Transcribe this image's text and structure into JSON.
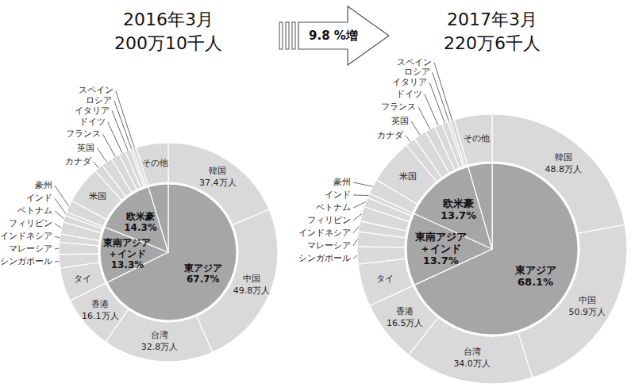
{
  "change_label": "9.8 %増",
  "chart_data": [
    {
      "type": "pie",
      "title": "2016年3月",
      "subtitle": "200万10千人",
      "data_labels": true,
      "series": [
        {
          "color": "#a6a6a6",
          "categories": [
            "東アジア",
            "東南アジア＋インド",
            "欧米豪",
            null
          ],
          "values": [
            67.7,
            13.3,
            14.3,
            4.7
          ],
          "value_labels": [
            "67.7%",
            "13.3%",
            "14.3%",
            null
          ]
        },
        {
          "color": "#d9d9d9",
          "categories": [
            "韓国",
            "中国",
            "台湾",
            "香港",
            "タイ",
            "シンガポール",
            "マレーシア",
            "インドネシア",
            "フィリピン",
            "ベトナム",
            "インド",
            "豪州",
            "米国",
            "カナダ",
            "英国",
            "フランス",
            "ドイツ",
            "イタリア",
            "ロシア",
            "スペイン",
            "その他"
          ],
          "values": [
            37.4,
            49.8,
            32.8,
            16.1,
            10.0,
            4.0,
            3.6,
            2.4,
            3.6,
            2.0,
            1.1,
            3.6,
            11.2,
            2.6,
            3.3,
            2.6,
            2.0,
            1.6,
            0.7,
            1.1,
            9.5
          ],
          "value_labels": [
            "37.4万人",
            "49.8万人",
            "32.8万人",
            "16.1万人",
            null,
            null,
            null,
            null,
            null,
            null,
            null,
            null,
            null,
            null,
            null,
            null,
            null,
            null,
            null,
            null,
            null
          ]
        }
      ]
    },
    {
      "type": "pie",
      "title": "2017年3月",
      "subtitle": "220万6千人",
      "data_labels": true,
      "series": [
        {
          "color": "#a6a6a6",
          "categories": [
            "東アジア",
            "東南アジア＋インド",
            "欧米豪",
            null
          ],
          "values": [
            68.1,
            13.7,
            13.7,
            4.5
          ],
          "value_labels": [
            "68.1%",
            "13.7%",
            "13.7%",
            null
          ]
        },
        {
          "color": "#d9d9d9",
          "categories": [
            "韓国",
            "中国",
            "台湾",
            "香港",
            "タイ",
            "シンガポール",
            "マレーシア",
            "インドネシア",
            "フィリピン",
            "ベトナム",
            "インド",
            "豪州",
            "米国",
            "カナダ",
            "英国",
            "フランス",
            "ドイツ",
            "イタリア",
            "ロシア",
            "スペイン",
            "その他"
          ],
          "values": [
            48.8,
            50.9,
            34.0,
            16.5,
            11.3,
            4.6,
            3.9,
            2.8,
            3.9,
            2.5,
            1.2,
            4.0,
            12.0,
            2.7,
            3.4,
            2.6,
            2.1,
            1.6,
            0.7,
            1.1,
            10.0
          ],
          "value_labels": [
            "48.8万人",
            "50.9万人",
            "34.0万人",
            "16.5万人",
            null,
            null,
            null,
            null,
            null,
            null,
            null,
            null,
            null,
            null,
            null,
            null,
            null,
            null,
            null,
            null,
            null
          ]
        }
      ]
    }
  ]
}
